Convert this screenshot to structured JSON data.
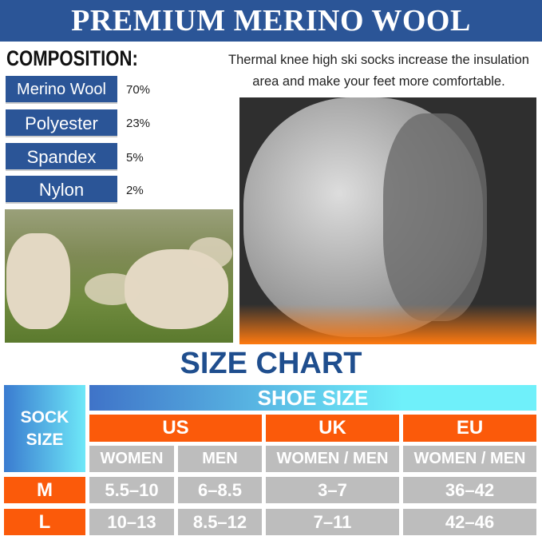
{
  "header": {
    "title": "PREMIUM MERINO WOOL"
  },
  "composition": {
    "title": "COMPOSITION:",
    "items": [
      {
        "material": "Merino Wool",
        "percent": "70%"
      },
      {
        "material": "Polyester",
        "percent": "23%"
      },
      {
        "material": "Spandex",
        "percent": "5%"
      },
      {
        "material": "Nylon",
        "percent": "2%"
      }
    ]
  },
  "description": "Thermal knee high ski socks increase the insulation area and make your feet more comfortable.",
  "size_chart": {
    "title": "SIZE CHART",
    "sock_size_label": "SOCK SIZE",
    "shoe_size_label": "SHOE SIZE",
    "regions": [
      "US",
      "UK",
      "EU"
    ],
    "subheaders": [
      "WOMEN",
      "MEN",
      "WOMEN / MEN",
      "WOMEN / MEN"
    ],
    "rows": [
      {
        "size": "M",
        "values": [
          "5.5–10",
          "6–8.5",
          "3–7",
          "36–42"
        ]
      },
      {
        "size": "L",
        "values": [
          "10–13",
          "8.5–12",
          "7–11",
          "42–46"
        ]
      }
    ]
  },
  "colors": {
    "brand_blue": "#2b5597",
    "orange": "#fb5a0a",
    "gray": "#bdbdbd",
    "title_blue": "#1f4e8e"
  }
}
